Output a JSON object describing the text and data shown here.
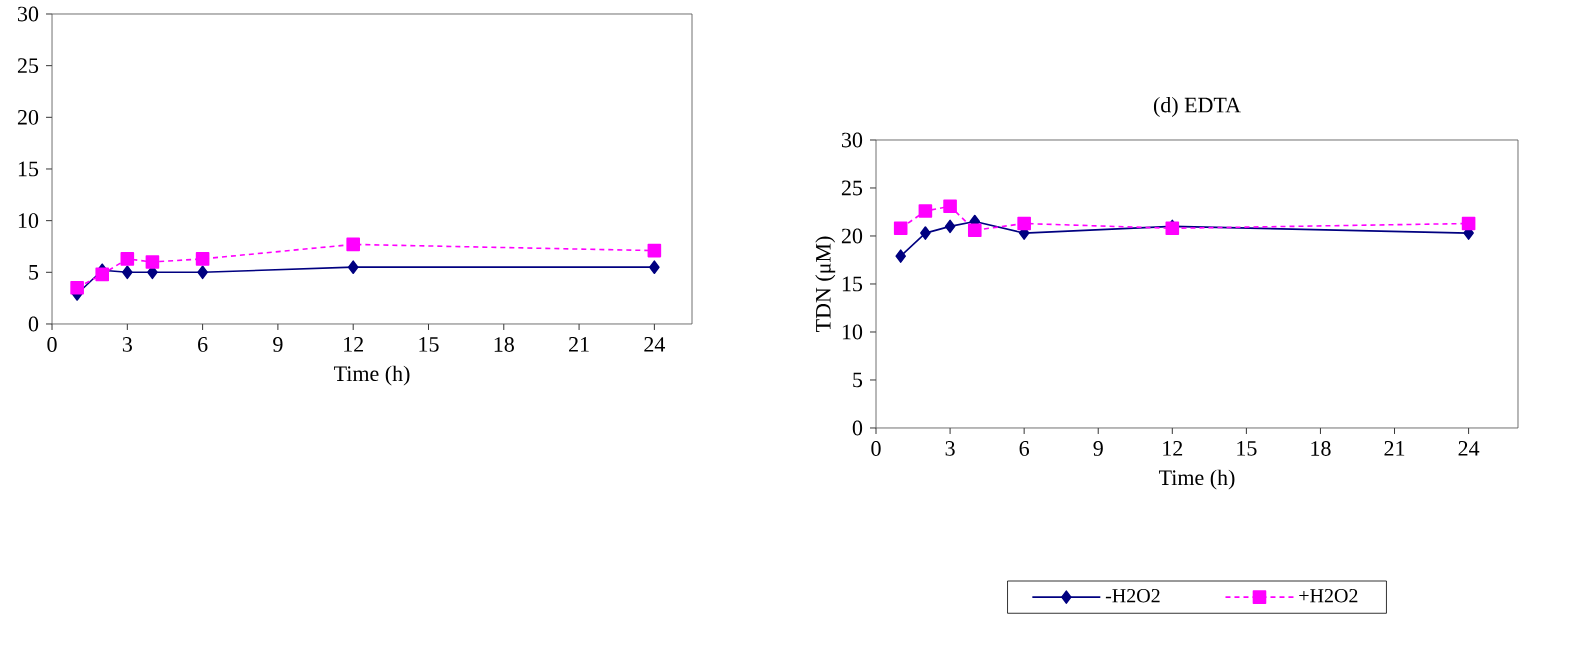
{
  "chart_data": [
    {
      "type": "line",
      "xlabel": "Time (h)",
      "xlim": [
        0,
        25.5
      ],
      "xticks": [
        0,
        3,
        6,
        9,
        12,
        15,
        18,
        21,
        24
      ],
      "ylim": [
        0,
        30
      ],
      "yticks": [
        0,
        5,
        10,
        15,
        20,
        25,
        30
      ],
      "grid": false,
      "legend": false,
      "series": [
        {
          "color": "#000080",
          "marker": "diamond",
          "line_style": "solid",
          "x": [
            1,
            2,
            3,
            4,
            6,
            12,
            24
          ],
          "values": [
            2.9,
            5.2,
            5.0,
            5.0,
            5.0,
            5.5,
            5.5
          ]
        },
        {
          "color": "#ff00ff",
          "marker": "square",
          "line_style": "dashed",
          "x": [
            1,
            2,
            3,
            4,
            6,
            12,
            24
          ],
          "values": [
            3.5,
            4.8,
            6.3,
            6.0,
            6.3,
            7.7,
            7.1
          ]
        }
      ]
    },
    {
      "type": "line",
      "title": "(d) EDTA",
      "xlabel": "Time (h)",
      "ylabel": "TDN (μM)",
      "xlim": [
        0,
        26
      ],
      "xticks": [
        0,
        3,
        6,
        9,
        12,
        15,
        18,
        21,
        24
      ],
      "ylim": [
        0,
        30
      ],
      "yticks": [
        0,
        5,
        10,
        15,
        20,
        25,
        30
      ],
      "grid": false,
      "legend": "bottom",
      "series": [
        {
          "name": "-H2O2",
          "color": "#000080",
          "marker": "diamond",
          "line_style": "solid",
          "x": [
            1,
            2,
            3,
            4,
            6,
            12,
            24
          ],
          "values": [
            17.9,
            20.3,
            21.0,
            21.5,
            20.3,
            21.0,
            20.3
          ]
        },
        {
          "name": "+H2O2",
          "color": "#ff00ff",
          "marker": "square",
          "line_style": "dashed",
          "x": [
            1,
            2,
            3,
            4,
            6,
            12,
            24
          ],
          "values": [
            20.8,
            22.6,
            23.1,
            20.6,
            21.3,
            20.8,
            21.3
          ]
        }
      ]
    }
  ]
}
